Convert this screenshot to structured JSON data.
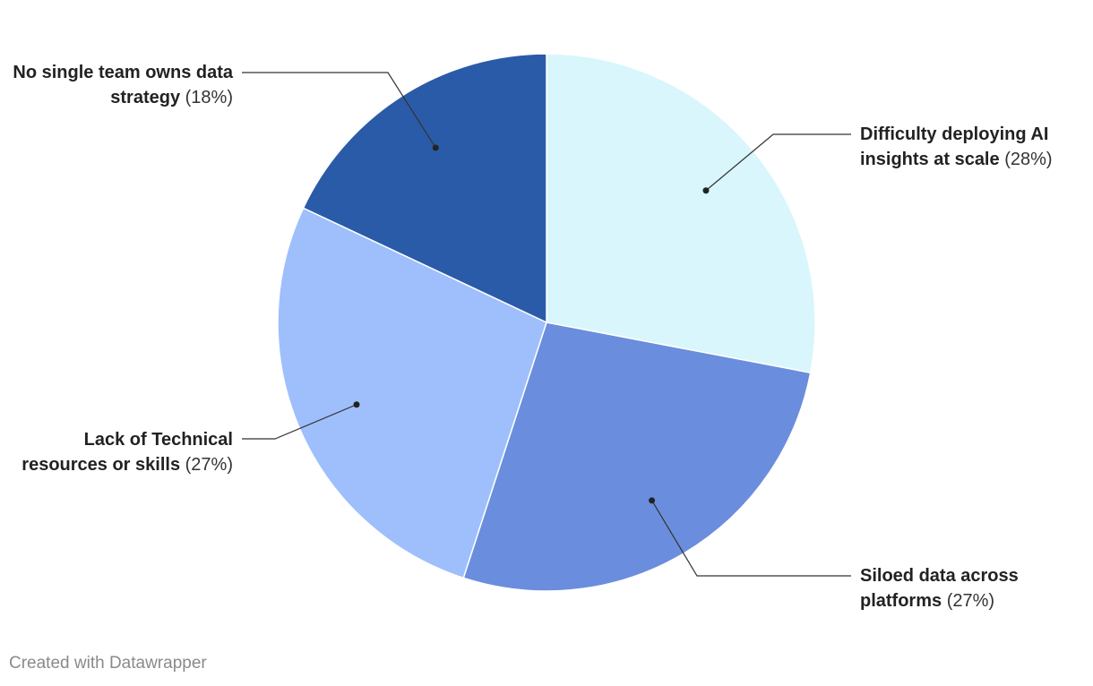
{
  "chart_data": {
    "type": "pie",
    "categories": [
      "Difficulty deploying AI insights at scale",
      "Siloed data across platforms",
      "Lack of Technical resources or skills",
      "No single team owns data strategy"
    ],
    "values": [
      28,
      27,
      27,
      18
    ],
    "value_labels": [
      "(28%)",
      "(27%)",
      "(27%)",
      "(18%)"
    ],
    "colors": [
      "#d8f6fc",
      "#6a8edd",
      "#9ebffc",
      "#2a5ba8"
    ]
  },
  "footer": "Created with Datawrapper"
}
